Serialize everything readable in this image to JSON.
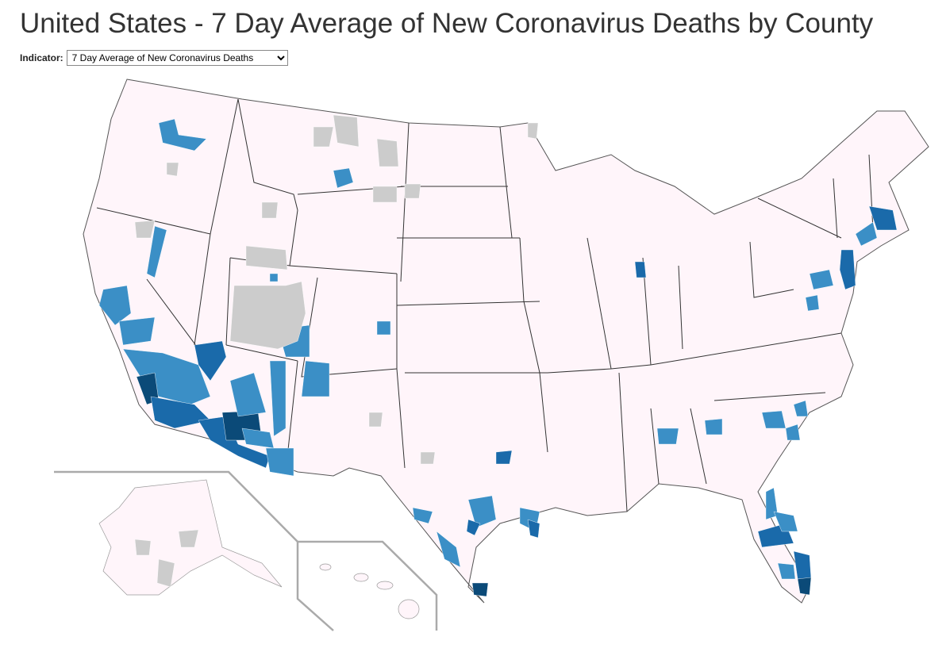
{
  "header": {
    "title": "United States - 7 Day Average of New Coronavirus Deaths by County"
  },
  "controls": {
    "indicator_label": "Indicator:",
    "indicator_value": "7 Day Average of New Coronavirus Deaths"
  }
}
